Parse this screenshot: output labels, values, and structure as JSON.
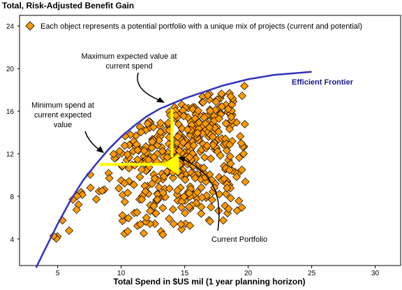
{
  "chart_data": {
    "type": "scatter",
    "title": "Total, Risk-Adjusted Benefit Gain",
    "xlabel": "Total Spend in $US mil (1 year planning horizon)",
    "ylabel": "",
    "xlim": [
      2,
      32
    ],
    "ylim": [
      1.5,
      25
    ],
    "xticks": [
      5,
      10,
      15,
      20,
      25,
      30
    ],
    "yticks": [
      4,
      8,
      12,
      16,
      20,
      24
    ],
    "grid": false,
    "legend_text": "Each object represents a potential portfolio with a unique mix of projects (current and potential)",
    "frontier_label": "Efficient Frontier",
    "frontier": [
      [
        3.3,
        1.3
      ],
      [
        4,
        3.0
      ],
      [
        5,
        5.4
      ],
      [
        6,
        7.6
      ],
      [
        7,
        9.5
      ],
      [
        8,
        11.0
      ],
      [
        9,
        12.4
      ],
      [
        10,
        13.6
      ],
      [
        11,
        14.6
      ],
      [
        12,
        15.5
      ],
      [
        13,
        16.2
      ],
      [
        14,
        16.7
      ],
      [
        15,
        17.2
      ],
      [
        16,
        17.6
      ],
      [
        17,
        18.0
      ],
      [
        18,
        18.4
      ],
      [
        19,
        18.7
      ],
      [
        20,
        19.0
      ],
      [
        21,
        19.2
      ],
      [
        22,
        19.4
      ],
      [
        23,
        19.5
      ],
      [
        24,
        19.6
      ],
      [
        25,
        19.7
      ]
    ],
    "current_portfolio": [
      14,
      11.0
    ],
    "annotations": [
      {
        "text": "Maximum expected value at current spend",
        "lines": [
          "Maximum expected value at",
          "current spend"
        ]
      },
      {
        "text": "Minimum spend at current expected value",
        "lines": [
          "Minimum spend at",
          "current expected",
          "value"
        ]
      },
      {
        "text": "Current Portfolio",
        "lines": [
          "Current Portfolio"
        ]
      }
    ],
    "marker_color": "#ff9900",
    "frontier_color": "#3333bb",
    "arrow_color": "#ffff00"
  }
}
